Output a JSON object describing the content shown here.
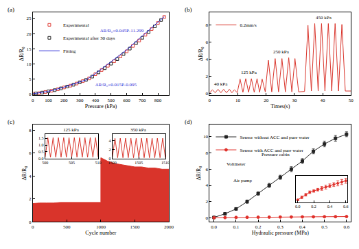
{
  "chart_data": [
    {
      "type": "scatter",
      "title": "(a)",
      "xlabel": "Pressure (kPa)",
      "ylabel": "ΔR/R₀",
      "xlim": [
        0,
        870
      ],
      "xticks": [
        0,
        100,
        200,
        300,
        400,
        500,
        600,
        700,
        800
      ],
      "ylim": [
        -0.5,
        27
      ],
      "yticks": [
        0,
        5,
        10,
        15,
        20,
        25
      ],
      "legend": "upper left",
      "series": [
        {
          "name": "Experimental",
          "type": "scatter",
          "marker": "square-open",
          "color": "#e0403a",
          "x": [
            0,
            40,
            80,
            120,
            160,
            200,
            240,
            280,
            320,
            360,
            400,
            440,
            480,
            520,
            560,
            600,
            640,
            680,
            720,
            760,
            800,
            840
          ],
          "values": [
            0,
            0.2,
            0.6,
            1.0,
            1.5,
            2.1,
            2.7,
            3.4,
            4.2,
            5.1,
            6.5,
            7.9,
            9.3,
            10.8,
            12.4,
            14.1,
            15.9,
            17.7,
            19.6,
            21.5,
            23.5,
            25.5
          ]
        },
        {
          "name": "Experimental after 30 days",
          "type": "scatter",
          "marker": "square-open",
          "color": "#222222",
          "x": [
            20,
            60,
            100,
            140,
            180,
            220,
            260,
            300,
            340,
            380,
            420,
            460,
            500,
            540,
            580,
            620,
            660,
            700,
            740,
            780,
            820
          ],
          "values": [
            0.1,
            0.4,
            0.8,
            1.2,
            1.8,
            2.4,
            3.0,
            3.8,
            4.6,
            5.7,
            7.1,
            8.5,
            10.0,
            11.5,
            13.2,
            15.0,
            16.8,
            18.6,
            20.5,
            22.4,
            24.5
          ]
        },
        {
          "name": "Fitting",
          "type": "line",
          "color": "#2b2bd6",
          "x": [
            0,
            100,
            200,
            300,
            340,
            400,
            500,
            600,
            700,
            800,
            840
          ],
          "values": [
            0,
            0.8,
            2.2,
            3.8,
            4.6,
            6.7,
            10.6,
            14.6,
            19.2,
            23.8,
            25.6
          ]
        }
      ],
      "annotations": [
        {
          "text": "ΔR/R₀=0.045P-11.299",
          "x": 570,
          "y": 21,
          "color": "#2b2bd6"
        },
        {
          "text": "ΔR/R₀=0.015P-0.095",
          "x": 530,
          "y": 3,
          "color": "#2b2bd6"
        }
      ]
    },
    {
      "type": "line",
      "title": "(b)",
      "xlabel": "Times(s)",
      "ylabel": "ΔR/R₀",
      "xlim": [
        0,
        50
      ],
      "xticks": [
        0,
        10,
        20,
        30,
        40,
        50
      ],
      "ylim": [
        -0.2,
        9.5
      ],
      "yticks": [
        0,
        2,
        4,
        6,
        8
      ],
      "legend": "upper left",
      "series": [
        {
          "name": "0.2mm/s",
          "type": "line",
          "color": "#d9342b",
          "x": [
            0,
            1,
            2,
            3,
            4,
            5,
            6,
            7,
            7.9,
            8.8,
            9.8,
            10.8,
            11.8,
            12.8,
            13.8,
            14.8,
            15.8,
            16.8,
            17.7,
            18.6,
            19.7,
            20.8,
            22,
            23.2,
            24.4,
            25.6,
            26.8,
            28,
            29.1,
            30.2,
            31.5,
            33.6,
            34.8,
            36,
            37.2,
            38.4,
            39.6,
            40.8,
            42,
            43.2,
            44.4,
            45.6,
            46.8,
            48,
            50
          ],
          "values": [
            0.05,
            0.45,
            0.1,
            0.5,
            0.1,
            0.5,
            0.1,
            0.5,
            0.1,
            0.45,
            0.1,
            1.7,
            0.15,
            1.75,
            0.15,
            1.75,
            0.15,
            1.75,
            0.15,
            1.7,
            0.2,
            3.9,
            0.2,
            4.1,
            0.2,
            4.1,
            0.2,
            4.2,
            0.2,
            4.1,
            0.2,
            0.25,
            8.0,
            0.3,
            8.2,
            0.3,
            8.2,
            0.3,
            8.2,
            0.3,
            8.2,
            0.3,
            8.1,
            0.3,
            0.3
          ]
        }
      ],
      "annotations": [
        {
          "text": "40 kPa",
          "x": 4,
          "y": 1.1
        },
        {
          "text": "125 kPa",
          "x": 14,
          "y": 2.5
        },
        {
          "text": "250 kPa",
          "x": 25.5,
          "y": 4.9
        },
        {
          "text": "450 kPa",
          "x": 40.5,
          "y": 8.9
        }
      ]
    },
    {
      "type": "area",
      "title": "(c)",
      "xlabel": "Cycle number",
      "ylabel": "ΔR/R₀",
      "xlim": [
        0,
        2000
      ],
      "xticks": [
        0,
        500,
        1000,
        1500,
        2000
      ],
      "ylim": [
        0,
        8.5
      ],
      "yticks": [
        0,
        2,
        4,
        6,
        8
      ],
      "series": [
        {
          "type": "area",
          "color": "#d9342b",
          "x": [
            0,
            100,
            200,
            300,
            400,
            500,
            600,
            700,
            800,
            900,
            1000,
            1000,
            1100,
            1200,
            1300,
            1400,
            1500,
            1600,
            1700,
            1800,
            1900,
            2000
          ],
          "values": [
            1.6,
            1.65,
            1.65,
            1.65,
            1.7,
            1.7,
            1.7,
            1.7,
            1.7,
            1.7,
            1.7,
            5.6,
            5.3,
            5.1,
            5.0,
            4.9,
            4.8,
            4.8,
            4.7,
            4.7,
            4.6,
            4.6
          ]
        }
      ]
    },
    {
      "type": "line",
      "title": "125 kPa",
      "xlim": [
        500,
        510
      ],
      "xticks": [
        500,
        505,
        510
      ],
      "ylim": [
        0,
        1.8
      ],
      "yticks": [
        {
          "value": 0,
          "label": "0.0"
        },
        {
          "value": 0.5,
          "label": "0.5"
        },
        {
          "value": 1,
          "label": "1.0"
        },
        {
          "value": 1.5,
          "label": "1.5"
        }
      ],
      "series": [
        {
          "type": "line",
          "color": "#d9342b",
          "x": [
            500,
            500.5,
            501,
            501.5,
            502,
            502.5,
            503,
            503.5,
            504,
            504.5,
            505,
            505.5,
            506,
            506.5,
            507,
            507.5,
            508,
            508.5,
            509,
            509.5,
            510
          ],
          "values": [
            0.1,
            1.55,
            0.1,
            1.55,
            0.1,
            1.55,
            0.1,
            1.55,
            0.1,
            1.55,
            0.1,
            1.55,
            0.1,
            1.55,
            0.1,
            1.55,
            0.1,
            1.55,
            0.1,
            1.55,
            0.1
          ]
        }
      ]
    },
    {
      "type": "line",
      "title": "350 kPa",
      "xlim": [
        1500,
        1510
      ],
      "xticks": [
        1500,
        1505,
        1510
      ],
      "ylim": [
        0,
        5.5
      ],
      "yticks": [
        0,
        2,
        4
      ],
      "series": [
        {
          "type": "line",
          "color": "#d9342b",
          "x": [
            1500,
            1500.5,
            1501,
            1501.5,
            1502,
            1502.5,
            1503,
            1503.5,
            1504,
            1504.5,
            1505,
            1505.5,
            1506,
            1506.5,
            1507,
            1507.5,
            1508,
            1508.5,
            1509,
            1509.5,
            1510
          ],
          "values": [
            0.2,
            4.6,
            0.2,
            4.6,
            0.2,
            4.6,
            0.2,
            4.6,
            0.2,
            4.6,
            0.2,
            4.6,
            0.2,
            4.6,
            0.2,
            4.6,
            0.2,
            4.6,
            0.2,
            4.6,
            0.2
          ]
        }
      ]
    },
    {
      "type": "line",
      "title": "(d)",
      "xlabel": "Hydraulic pressure (MPa)",
      "ylabel": "ΔR/R₀",
      "xlim": [
        -0.02,
        0.62
      ],
      "xticks": [
        {
          "value": 0,
          "label": "0.0"
        },
        0.1,
        0.2,
        0.3,
        0.4,
        0.5,
        0.6
      ],
      "ylim": [
        -0.5,
        11.5
      ],
      "yticks": [
        0,
        2,
        4,
        6,
        8,
        10
      ],
      "legend": "upper left",
      "series": [
        {
          "name": "Sensor without ACC and pure water",
          "type": "line",
          "marker": "square",
          "color": "#222222",
          "x": [
            0,
            0.05,
            0.1,
            0.15,
            0.2,
            0.25,
            0.3,
            0.35,
            0.4,
            0.45,
            0.5,
            0.55,
            0.6
          ],
          "values": [
            0.05,
            0.5,
            1.1,
            2.0,
            3.0,
            4.0,
            5.0,
            6.0,
            7.0,
            8.2,
            9.1,
            9.8,
            10.3
          ],
          "errors": [
            0.05,
            0.1,
            0.15,
            0.2,
            0.2,
            0.25,
            0.25,
            0.3,
            0.3,
            0.3,
            0.35,
            0.35,
            0.3
          ]
        },
        {
          "name": "Sensor with ACC and pure water",
          "type": "line",
          "marker": "circle",
          "color": "#e0302a",
          "x": [
            0,
            0.05,
            0.1,
            0.15,
            0.2,
            0.25,
            0.3,
            0.35,
            0.4,
            0.45,
            0.5,
            0.55,
            0.6
          ],
          "values": [
            0.01,
            0.03,
            0.05,
            0.07,
            0.08,
            0.09,
            0.1,
            0.11,
            0.12,
            0.13,
            0.14,
            0.15,
            0.16
          ],
          "errors": [
            0.005,
            0.01,
            0.01,
            0.01,
            0.01,
            0.01,
            0.015,
            0.015,
            0.015,
            0.015,
            0.02,
            0.02,
            0.02
          ]
        }
      ],
      "annotations": [
        {
          "text": "Voltmeter",
          "x": 0.1,
          "y": 6.6
        },
        {
          "text": "Pressure cabin",
          "x": 0.28,
          "y": 7.8
        },
        {
          "text": "Air pump",
          "x": 0.13,
          "y": 4.6
        }
      ]
    },
    {
      "type": "line",
      "tick_labels": "x",
      "xlim": [
        -0.02,
        0.62
      ],
      "xticks": [
        {
          "value": 0,
          "label": "0.0"
        },
        0.2,
        0.4,
        0.6
      ],
      "ylim": [
        -0.01,
        0.2
      ],
      "series": [
        {
          "type": "line",
          "marker": "circle",
          "color": "#e0302a",
          "x": [
            0,
            0.05,
            0.1,
            0.15,
            0.2,
            0.25,
            0.3,
            0.35,
            0.4,
            0.45,
            0.5,
            0.55,
            0.6
          ],
          "values": [
            0.01,
            0.03,
            0.05,
            0.07,
            0.08,
            0.09,
            0.1,
            0.11,
            0.12,
            0.13,
            0.14,
            0.15,
            0.16
          ],
          "errors": [
            0.005,
            0.01,
            0.01,
            0.01,
            0.01,
            0.01,
            0.015,
            0.015,
            0.015,
            0.015,
            0.02,
            0.02,
            0.02
          ]
        }
      ]
    }
  ]
}
